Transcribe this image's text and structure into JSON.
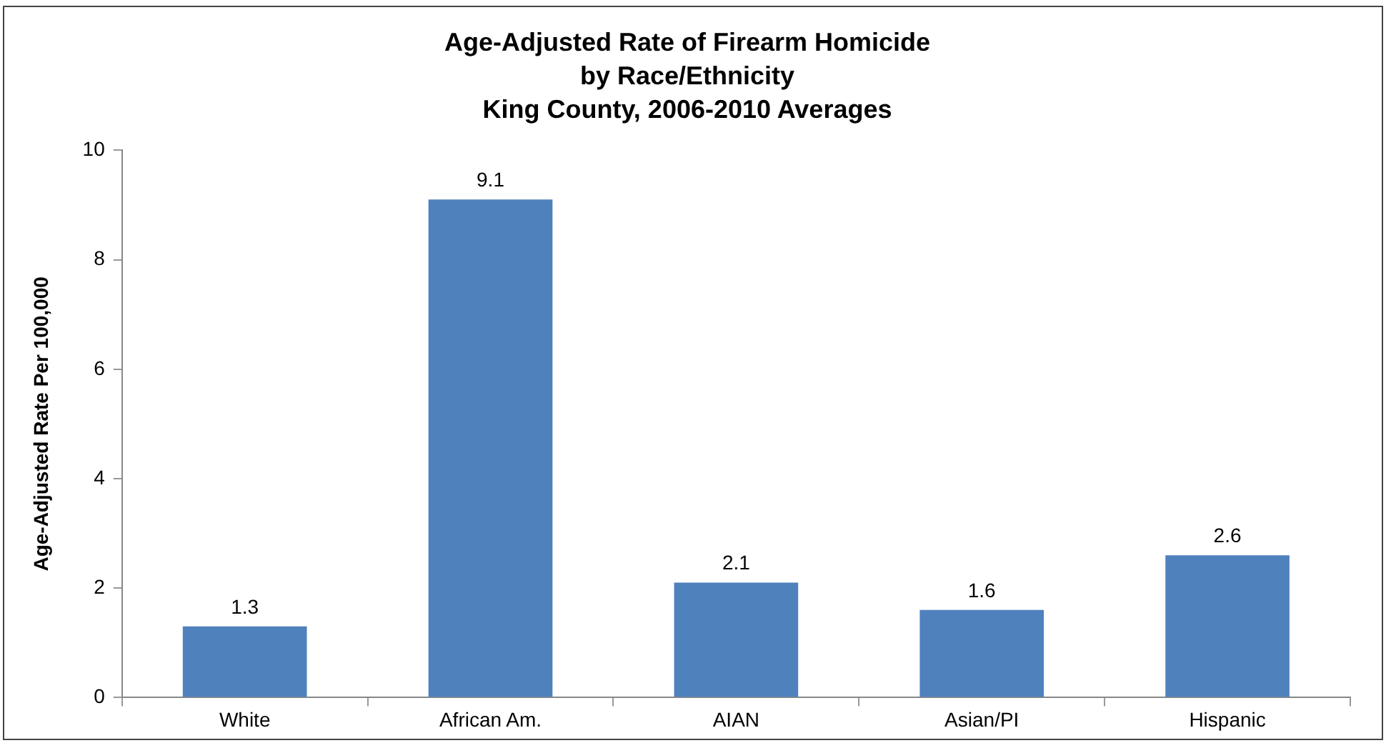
{
  "chart_data": {
    "type": "bar",
    "title": "Age-Adjusted Rate of Firearm Homicide\nby Race/Ethnicity\nKing County, 2006-2010 Averages",
    "ylabel": "Age-Adjusted Rate Per 100,000",
    "categories": [
      "White",
      "African Am.",
      "AIAN",
      "Asian/PI",
      "Hispanic"
    ],
    "values": [
      1.3,
      9.1,
      2.1,
      1.6,
      2.6
    ],
    "color": "#4f81bd",
    "ylim": [
      0,
      10
    ],
    "yticks": [
      0,
      2,
      4,
      6,
      8,
      10
    ],
    "data_labels": true
  }
}
